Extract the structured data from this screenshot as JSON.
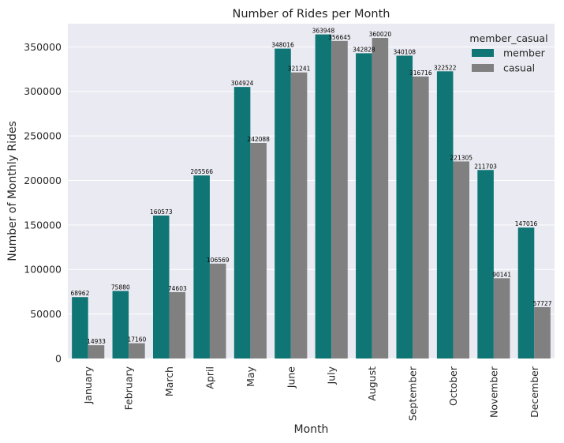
{
  "chart_data": {
    "type": "bar",
    "title": "Number of Rides per Month",
    "xlabel": "Month",
    "ylabel": "Number of Monthly Rides",
    "categories": [
      "January",
      "February",
      "March",
      "April",
      "May",
      "June",
      "July",
      "August",
      "September",
      "October",
      "November",
      "December"
    ],
    "series": [
      {
        "name": "member",
        "color": "#0f7675",
        "values": [
          68962,
          75880,
          160573,
          205566,
          304924,
          348016,
          363948,
          342828,
          340108,
          322522,
          211703,
          147016
        ]
      },
      {
        "name": "casual",
        "color": "#808080",
        "values": [
          14933,
          17160,
          74603,
          106569,
          242088,
          321241,
          356645,
          360020,
          316716,
          221305,
          90141,
          57727
        ]
      }
    ],
    "ylim": [
      0,
      376000
    ],
    "yticks": [
      0,
      50000,
      100000,
      150000,
      200000,
      250000,
      300000,
      350000
    ],
    "grid": true,
    "legend": {
      "title": "member_casual",
      "placement": "top-right"
    },
    "background": "#eaeaf2"
  }
}
